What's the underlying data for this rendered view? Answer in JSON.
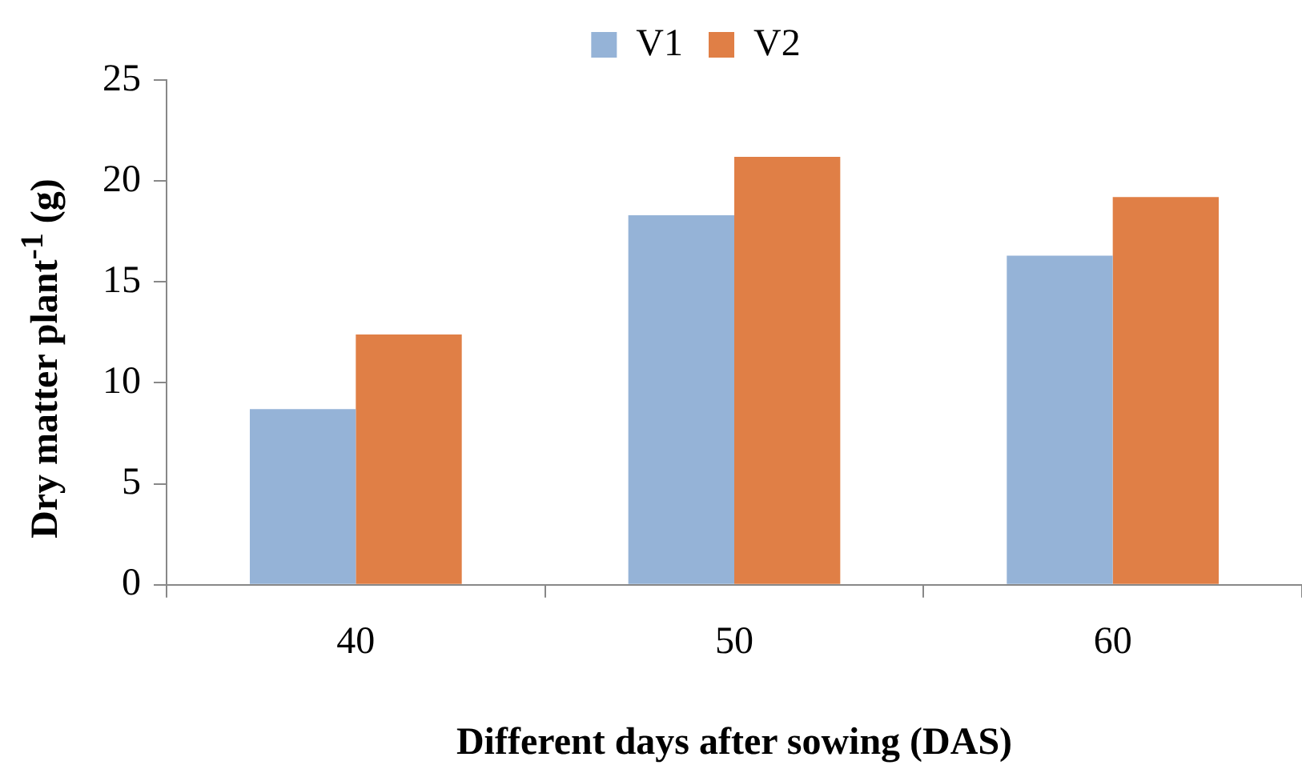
{
  "chart_data": {
    "type": "bar",
    "xlabel": "Different days after sowing (DAS)",
    "ylabel": "Dry matter plant$^{-1}$ (g)",
    "categories": [
      "40",
      "50",
      "60"
    ],
    "series": [
      {
        "name": "V1",
        "color": "#95b3d7",
        "values": [
          8.7,
          18.3,
          16.3
        ]
      },
      {
        "name": "V2",
        "color": "#e07f46",
        "values": [
          12.4,
          21.2,
          19.2
        ]
      }
    ],
    "ylim": [
      0,
      25
    ],
    "yticks": [
      0,
      5,
      10,
      15,
      20,
      25
    ],
    "grid": false,
    "legend": "top"
  }
}
